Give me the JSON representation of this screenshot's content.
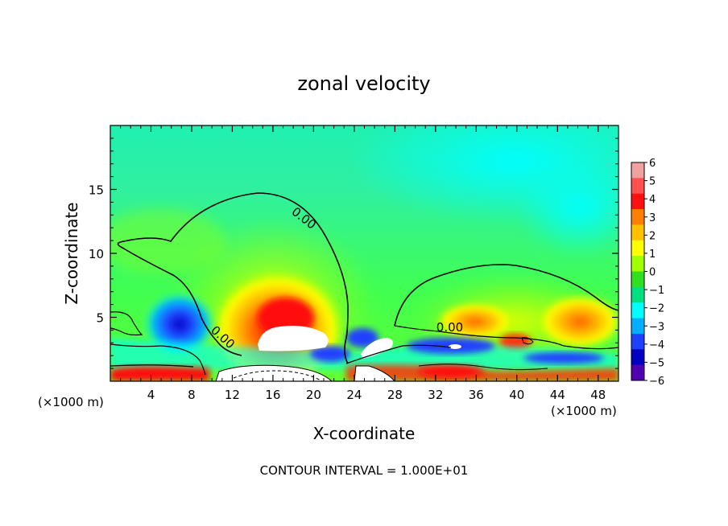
{
  "chart_data": {
    "type": "heatmap",
    "title": "zonal velocity",
    "xlabel": "X-coordinate",
    "ylabel": "Z-coordinate",
    "x_unit_left": "(×1000 m)",
    "x_unit_right": "(×1000 m)",
    "xlim": [
      0,
      50
    ],
    "ylim": [
      0,
      20
    ],
    "x_ticks": [
      4,
      8,
      12,
      16,
      20,
      24,
      28,
      32,
      36,
      40,
      44,
      48
    ],
    "x_tick_labels": [
      "4",
      "8",
      "12",
      "16",
      "20",
      "24",
      "28",
      "32",
      "36",
      "40",
      "44",
      "48"
    ],
    "y_ticks": [
      5,
      10,
      15
    ],
    "y_tick_labels": [
      "5",
      "10",
      "15"
    ],
    "contour_labels": [
      "0.00",
      "0.00",
      "0.00"
    ],
    "footnote": "CONTOUR INTERVAL = 1.000E+01",
    "colorbar": {
      "tick_labels": [
        "6",
        "5",
        "4",
        "3",
        "2",
        "1",
        "0",
        "−1",
        "−2",
        "−3",
        "−4",
        "−5",
        "−6"
      ],
      "colors": [
        "#f0a0a0",
        "#ff5050",
        "#ff1010",
        "#ff8000",
        "#ffc000",
        "#ffff00",
        "#a0ff00",
        "#30e020",
        "#00e080",
        "#00ffff",
        "#00b0ff",
        "#2040ff",
        "#0000c0",
        "#5000b0"
      ]
    }
  }
}
